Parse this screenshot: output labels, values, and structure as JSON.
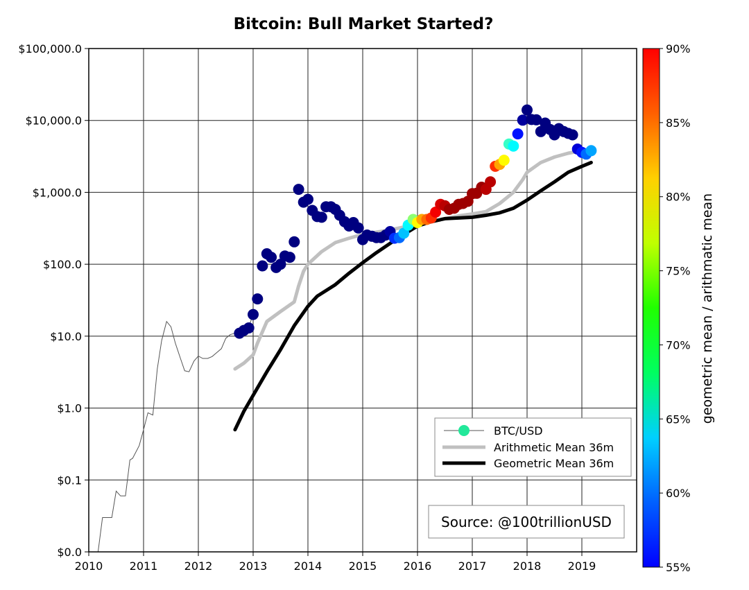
{
  "chart_data": {
    "type": "scatter",
    "title": "Bitcoin: Bull Market Started?",
    "xlabel": "",
    "ylabel": "",
    "x_range": [
      2010,
      2020
    ],
    "y_scale": "log",
    "y_range": [
      0.01,
      100000
    ],
    "grid": true,
    "x_ticks": [
      {
        "value": 2010,
        "label": "2010"
      },
      {
        "value": 2011,
        "label": "2011"
      },
      {
        "value": 2012,
        "label": "2012"
      },
      {
        "value": 2013,
        "label": "2013"
      },
      {
        "value": 2014,
        "label": "2014"
      },
      {
        "value": 2015,
        "label": "2015"
      },
      {
        "value": 2016,
        "label": "2016"
      },
      {
        "value": 2017,
        "label": "2017"
      },
      {
        "value": 2018,
        "label": "2018"
      },
      {
        "value": 2019,
        "label": "2019"
      }
    ],
    "y_ticks": [
      {
        "value": 0.01,
        "label": "$0.0"
      },
      {
        "value": 0.1,
        "label": "$0.1"
      },
      {
        "value": 1,
        "label": "$1.0"
      },
      {
        "value": 10,
        "label": "$10.0"
      },
      {
        "value": 100,
        "label": "$100.0"
      },
      {
        "value": 1000,
        "label": "$1,000.0"
      },
      {
        "value": 10000,
        "label": "$10,000.0"
      },
      {
        "value": 100000,
        "label": "$100,000.0"
      }
    ],
    "colorbar": {
      "label": "geometric mean / arithmatic mean",
      "range": [
        55,
        90
      ],
      "ticks": [
        {
          "value": 55,
          "label": "55%"
        },
        {
          "value": 60,
          "label": "60%"
        },
        {
          "value": 65,
          "label": "65%"
        },
        {
          "value": 70,
          "label": "70%"
        },
        {
          "value": 75,
          "label": "75%"
        },
        {
          "value": 80,
          "label": "80%"
        },
        {
          "value": 85,
          "label": "85%"
        },
        {
          "value": 90,
          "label": "90%"
        }
      ],
      "colormap": "jet"
    },
    "legend": {
      "position": "lower-right",
      "entries": [
        {
          "label": "BTC/USD",
          "marker": "circle",
          "color": "#22e89a"
        },
        {
          "label": "Arithmetic Mean 36m",
          "marker": "line",
          "color": "#c0c0c0"
        },
        {
          "label": "Geometric Mean 36m",
          "marker": "line",
          "color": "#000000"
        }
      ]
    },
    "annotation": "Source: @100trillionUSD",
    "series": [
      {
        "name": "BTC/USD",
        "kind": "thin-line",
        "color": "#555555",
        "x": [
          2010.17,
          2010.25,
          2010.42,
          2010.5,
          2010.58,
          2010.67,
          2010.75,
          2010.8,
          2010.92,
          2011.0,
          2011.08,
          2011.17,
          2011.25,
          2011.33,
          2011.42,
          2011.5,
          2011.58,
          2011.67,
          2011.75,
          2011.83,
          2011.92,
          2012.0,
          2012.08,
          2012.17,
          2012.25,
          2012.42,
          2012.5,
          2012.58,
          2012.67,
          2012.75,
          2012.83,
          2012.92,
          2013.0
        ],
        "y": [
          0.01,
          0.03,
          0.03,
          0.07,
          0.06,
          0.06,
          0.19,
          0.2,
          0.3,
          0.5,
          0.86,
          0.8,
          3.5,
          8.7,
          16,
          13.5,
          8,
          5,
          3.3,
          3.2,
          4.5,
          5.3,
          4.9,
          4.9,
          5.2,
          6.7,
          9.3,
          10.5,
          11,
          12,
          12.5,
          13.5,
          20
        ]
      },
      {
        "name": "BTC/USD",
        "kind": "monthly-dots",
        "x": [
          2012.75,
          2012.83,
          2012.92,
          2013.0,
          2013.08,
          2013.17,
          2013.25,
          2013.33,
          2013.42,
          2013.5,
          2013.58,
          2013.67,
          2013.75,
          2013.83,
          2013.92,
          2014.0,
          2014.08,
          2014.17,
          2014.25,
          2014.33,
          2014.42,
          2014.5,
          2014.58,
          2014.67,
          2014.75,
          2014.83,
          2014.92,
          2015.0,
          2015.08,
          2015.17,
          2015.25,
          2015.33,
          2015.42,
          2015.5,
          2015.58,
          2015.67,
          2015.75,
          2015.83,
          2015.92,
          2016.0,
          2016.08,
          2016.17,
          2016.25,
          2016.33,
          2016.42,
          2016.5,
          2016.58,
          2016.67,
          2016.75,
          2016.83,
          2016.92,
          2017.0,
          2017.08,
          2017.17,
          2017.25,
          2017.33,
          2017.42,
          2017.5,
          2017.58,
          2017.67,
          2017.75,
          2017.83,
          2017.92,
          2018.0,
          2018.08,
          2018.17,
          2018.25,
          2018.33,
          2018.42,
          2018.5,
          2018.58,
          2018.67,
          2018.75,
          2018.83,
          2018.92,
          2019.0,
          2019.08,
          2019.17
        ],
        "y": [
          11,
          12,
          13,
          20,
          33,
          95,
          140,
          125,
          90,
          100,
          130,
          125,
          205,
          1100,
          730,
          800,
          560,
          460,
          450,
          630,
          630,
          580,
          480,
          390,
          340,
          380,
          320,
          220,
          255,
          245,
          235,
          235,
          255,
          285,
          230,
          235,
          270,
          350,
          420,
          380,
          420,
          420,
          440,
          530,
          680,
          650,
          580,
          600,
          680,
          700,
          750,
          960,
          970,
          1180,
          1100,
          1400,
          2300,
          2450,
          2800,
          4700,
          4400,
          6500,
          10100,
          14000,
          10300,
          10200,
          7000,
          9200,
          7500,
          6300,
          7700,
          7000,
          6600,
          6300,
          4000,
          3600,
          3400,
          3800
        ],
        "ratio_percent": [
          55,
          55,
          55,
          55,
          55,
          55,
          55,
          55,
          55,
          55,
          55,
          55,
          55,
          55,
          55,
          55,
          55,
          55,
          55,
          55,
          55,
          55,
          55,
          55,
          55,
          55,
          55,
          55,
          55,
          55,
          55,
          55,
          55,
          56,
          61,
          63,
          66,
          68,
          73,
          77,
          80,
          82,
          84,
          86,
          87,
          88,
          89,
          89,
          89,
          89,
          89,
          89,
          89,
          89,
          88,
          88,
          84,
          80,
          77,
          70,
          68,
          60,
          56,
          55,
          55,
          55,
          55,
          55,
          55,
          55,
          55,
          55,
          55,
          55,
          58,
          60,
          63,
          65
        ]
      },
      {
        "name": "Arithmetic Mean 36m",
        "kind": "mean-line",
        "color": "#c0c0c0",
        "x": [
          2012.67,
          2012.83,
          2013.0,
          2013.08,
          2013.25,
          2013.5,
          2013.75,
          2013.83,
          2013.92,
          2014.0,
          2014.25,
          2014.5,
          2014.75,
          2015.0,
          2015.25,
          2015.5,
          2015.75,
          2016.0,
          2016.25,
          2016.5,
          2016.75,
          2017.0,
          2017.25,
          2017.5,
          2017.75,
          2017.92,
          2018.0,
          2018.25,
          2018.5,
          2018.75,
          2019.0,
          2019.17
        ],
        "y": [
          3.5,
          4.2,
          5.5,
          8,
          16,
          22,
          30,
          50,
          80,
          100,
          150,
          200,
          230,
          260,
          280,
          300,
          330,
          360,
          390,
          430,
          470,
          500,
          540,
          700,
          1000,
          1500,
          1900,
          2600,
          3100,
          3500,
          3800,
          4000
        ]
      },
      {
        "name": "Geometric Mean 36m",
        "kind": "mean-line",
        "color": "#000000",
        "x": [
          2012.67,
          2012.83,
          2013.0,
          2013.25,
          2013.5,
          2013.75,
          2014.0,
          2014.17,
          2014.5,
          2014.75,
          2015.0,
          2015.25,
          2015.5,
          2015.75,
          2016.0,
          2016.25,
          2016.5,
          2016.75,
          2017.0,
          2017.25,
          2017.5,
          2017.75,
          2018.0,
          2018.25,
          2018.5,
          2018.75,
          2019.0,
          2019.17
        ],
        "y": [
          0.5,
          0.9,
          1.5,
          3.2,
          6.5,
          14,
          26,
          36,
          52,
          75,
          105,
          145,
          195,
          260,
          340,
          390,
          430,
          440,
          450,
          480,
          520,
          600,
          780,
          1050,
          1400,
          1900,
          2300,
          2600
        ]
      }
    ]
  }
}
